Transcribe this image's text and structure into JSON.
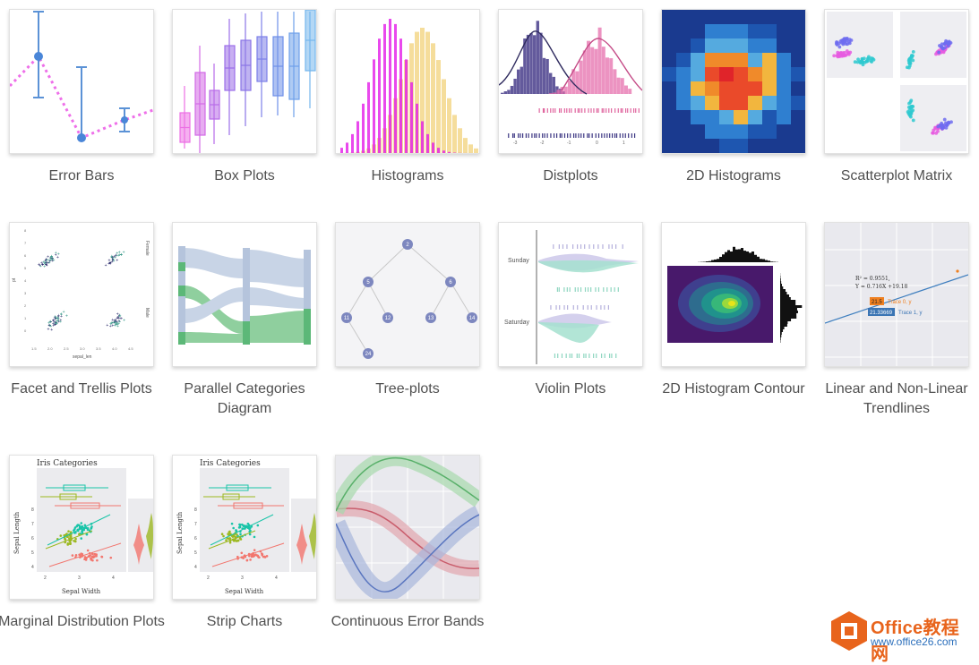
{
  "gallery": {
    "items": [
      {
        "label": "Error Bars",
        "icon": "error-bars-thumbnail"
      },
      {
        "label": "Box Plots",
        "icon": "box-plots-thumbnail"
      },
      {
        "label": "Histograms",
        "icon": "histograms-thumbnail"
      },
      {
        "label": "Distplots",
        "icon": "distplots-thumbnail"
      },
      {
        "label": "2D Histograms",
        "icon": "2d-histograms-thumbnail"
      },
      {
        "label": "Scatterplot Matrix",
        "icon": "scatterplot-matrix-thumbnail"
      },
      {
        "label": "Facet and Trellis Plots",
        "icon": "facet-trellis-thumbnail"
      },
      {
        "label": "Parallel Categories Diagram",
        "icon": "parallel-categories-thumbnail"
      },
      {
        "label": "Tree-plots",
        "icon": "tree-plots-thumbnail"
      },
      {
        "label": "Violin Plots",
        "icon": "violin-plots-thumbnail"
      },
      {
        "label": "2D Histogram Contour",
        "icon": "2d-histogram-contour-thumbnail"
      },
      {
        "label": "Linear and Non-Linear Trendlines",
        "icon": "trendlines-thumbnail"
      },
      {
        "label": "Marginal Distribution Plots",
        "icon": "marginal-distribution-thumbnail"
      },
      {
        "label": "Strip Charts",
        "icon": "strip-charts-thumbnail"
      },
      {
        "label": "Continuous Error Bands",
        "icon": "continuous-error-bands-thumbnail"
      }
    ]
  },
  "thumb_text": {
    "distplot_ticks": [
      "-3",
      "-2",
      "-1",
      "0",
      "1"
    ],
    "facet_y_ticks": [
      "8",
      "7",
      "6",
      "5",
      "4",
      "3",
      "2",
      "1",
      "0"
    ],
    "facet_x_ticks": [
      "1.5",
      "2.0",
      "2.5",
      "3.0",
      "3.5",
      "4.0",
      "4.5"
    ],
    "facet_xlabel": "sepal_len",
    "facet_ylabel": "pt",
    "facet_right_top": "Female",
    "facet_right_bottom": "Male",
    "tree_nodes": [
      "2",
      "5",
      "6",
      "11",
      "12",
      "13",
      "14",
      "24"
    ],
    "violin_day_1": "Sunday",
    "violin_day_2": "Saturday",
    "trend_eq_1": "R² = 0.9551,",
    "trend_eq_2": "Y = 0.716X +19.18",
    "trend_tip_1_value": "21.5",
    "trend_tip_1_label": "Trace 0, y",
    "trend_tip_2_value": "21.33669",
    "trend_tip_2_label": "Trace 1, y",
    "iris_title": "Iris Categories",
    "iris_ylabel": "Sepal Length",
    "iris_xlabel": "Sepal Width",
    "iris_y_ticks": [
      "8",
      "7",
      "6",
      "5",
      "4"
    ],
    "iris_x_ticks": [
      "2",
      "3",
      "4"
    ]
  },
  "watermark": {
    "title": "Office教程网",
    "url": "www.office26.com",
    "logo_icon": "office-logo-icon"
  }
}
